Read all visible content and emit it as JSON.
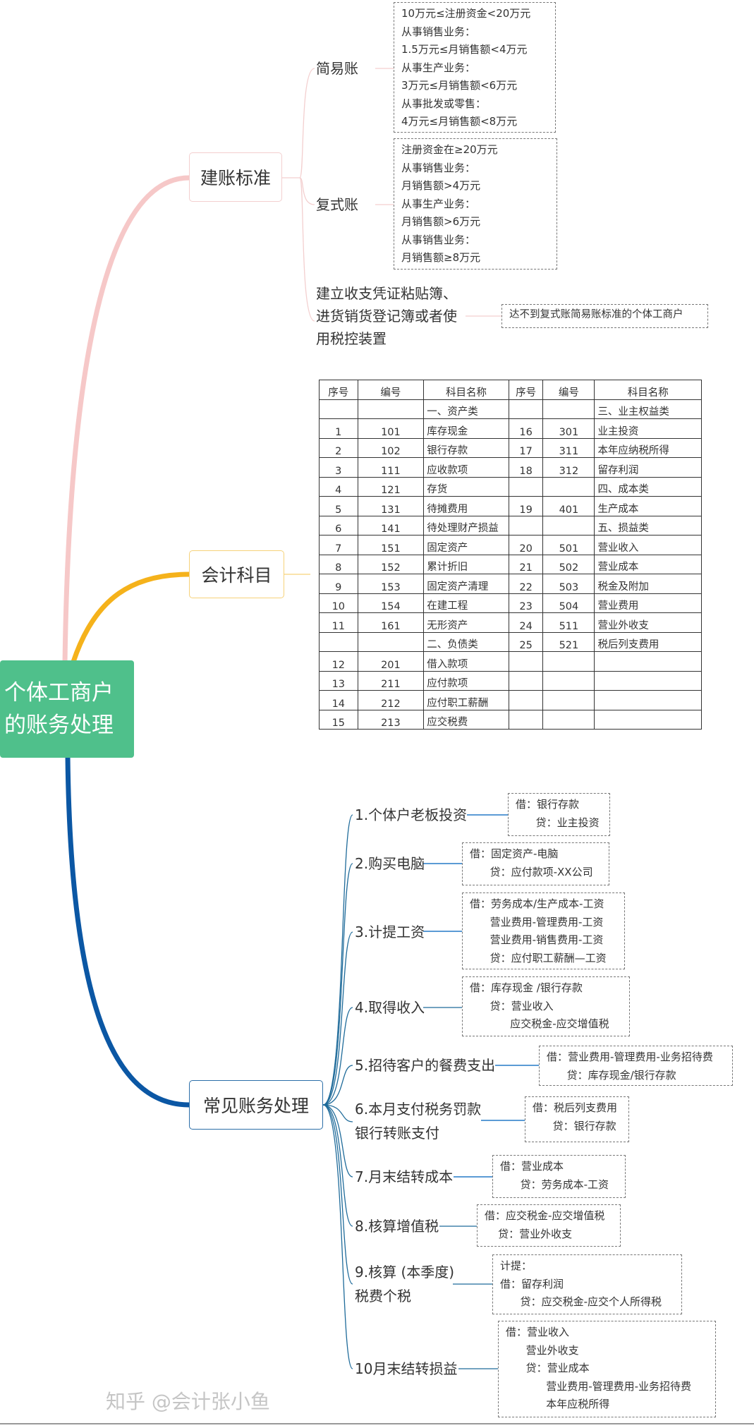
{
  "root": {
    "line1": "个体工商户",
    "line2": "的账务处理",
    "color": "#4fc08b"
  },
  "branches": [
    {
      "label": "建账标准",
      "color": "#f6c8c8"
    },
    {
      "label": "会计科目",
      "color": "#f5b21b"
    },
    {
      "label": "常见账务处理",
      "color": "#0b57a4"
    }
  ],
  "standards": {
    "simple": {
      "label": "简易账",
      "lines": [
        "10万元≤注册资金<20万元",
        "从事销售业务：",
        "1.5万元≤月销售额<4万元",
        "从事生产业务：",
        "3万元≤月销售额<6万元",
        "从事批发或零售：",
        "4万元≤月销售额<8万元"
      ]
    },
    "double": {
      "label": "复式账",
      "lines": [
        "注册资金在≥20万元",
        "从事销售业务：",
        "月销售额>4万元",
        "从事生产业务：",
        "月销售额>6万元",
        "从事销售业务：",
        "月销售额≥8万元"
      ]
    },
    "other": {
      "lines": [
        "建立收支凭证粘贴簿、",
        "进货销货登记簿或者使",
        "用税控装置"
      ],
      "note": "达不到复式账简易账标准的个体工商户"
    }
  },
  "accounts_table": {
    "headers": [
      "序号",
      "编号",
      "科目名称",
      "序号",
      "编号",
      "科目名称"
    ],
    "rows": [
      [
        "",
        "",
        "一、资产类",
        "",
        "",
        "三、业主权益类"
      ],
      [
        "1",
        "101",
        "库存现金",
        "16",
        "301",
        "业主投资"
      ],
      [
        "2",
        "102",
        "银行存款",
        "17",
        "311",
        "本年应纳税所得"
      ],
      [
        "3",
        "111",
        "应收款项",
        "18",
        "312",
        "留存利润"
      ],
      [
        "4",
        "121",
        "存货",
        "",
        "",
        "四、成本类"
      ],
      [
        "5",
        "131",
        "待摊费用",
        "19",
        "401",
        "生产成本"
      ],
      [
        "6",
        "141",
        "待处理财产损益",
        "",
        "",
        "五、损益类"
      ],
      [
        "7",
        "151",
        "固定资产",
        "20",
        "501",
        "营业收入"
      ],
      [
        "8",
        "152",
        "累计折旧",
        "21",
        "502",
        "营业成本"
      ],
      [
        "9",
        "153",
        "固定资产清理",
        "22",
        "503",
        "税金及附加"
      ],
      [
        "10",
        "154",
        "在建工程",
        "23",
        "504",
        "营业费用"
      ],
      [
        "11",
        "161",
        "无形资产",
        "24",
        "511",
        "营业外收支"
      ],
      [
        "",
        "",
        "二、负债类",
        "25",
        "521",
        "税后列支费用"
      ],
      [
        "12",
        "201",
        "借入款项",
        "",
        "",
        ""
      ],
      [
        "13",
        "211",
        "应付款项",
        "",
        "",
        ""
      ],
      [
        "14",
        "212",
        "应付职工薪酬",
        "",
        "",
        ""
      ],
      [
        "15",
        "213",
        "应交税费",
        "",
        "",
        ""
      ]
    ]
  },
  "entries": [
    {
      "title": [
        "1.个体户老板投资"
      ],
      "lines": [
        "借：银行存款",
        "      贷：业主投资"
      ]
    },
    {
      "title": [
        "2.购买电脑"
      ],
      "lines": [
        "借：固定资产-电脑",
        "      贷：应付款项-XX公司"
      ]
    },
    {
      "title": [
        "3.计提工资"
      ],
      "lines": [
        "借：劳务成本/生产成本-工资",
        "      营业费用-管理费用-工资",
        "      营业费用-销售费用-工资",
        "      贷：应付职工薪酬—工资"
      ]
    },
    {
      "title": [
        "4.取得收入"
      ],
      "lines": [
        "借：库存现金 /银行存款",
        "      贷：营业收入",
        "            应交税金-应交增值税"
      ]
    },
    {
      "title": [
        "5.招待客户的餐费支出"
      ],
      "lines": [
        "借：营业费用-管理费用-业务招待费",
        "      贷：库存现金/银行存款"
      ]
    },
    {
      "title": [
        "6.本月支付税务罚款",
        "银行转账支付"
      ],
      "lines": [
        "借：税后列支费用",
        "      贷：银行存款"
      ]
    },
    {
      "title": [
        "7.月末结转成本"
      ],
      "lines": [
        "借：营业成本",
        "      贷：劳务成本-工资"
      ]
    },
    {
      "title": [
        "8.核算增值税"
      ],
      "lines": [
        "借：应交税金-应交增值税",
        "    贷：营业外收支"
      ]
    },
    {
      "title": [
        "9.核算 (本季度)",
        "税费个税"
      ],
      "lines": [
        "计提：",
        "借：留存利润",
        "      贷：应交税金-应交个人所得税"
      ]
    },
    {
      "title": [
        "10月末结转损益"
      ],
      "lines": [
        "借：营业收入",
        "      营业外收支",
        "      贷：营业成本",
        "            营业费用-管理费用-业务招待费",
        "            本年应税所得"
      ]
    }
  ],
  "watermark": "知乎 @会计张小鱼"
}
